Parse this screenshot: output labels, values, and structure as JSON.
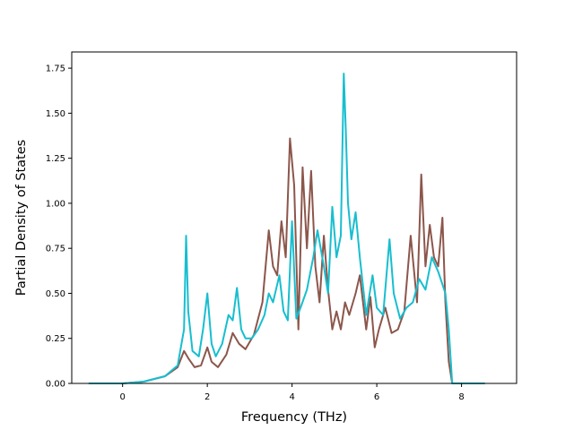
{
  "chart_data": {
    "type": "line",
    "title": "",
    "xlabel": "Frequency (THz)",
    "ylabel": "Partial Density of States",
    "xlim": [
      -1.2,
      9.3
    ],
    "ylim": [
      0.0,
      1.84
    ],
    "x_ticks": [
      0,
      2,
      4,
      6,
      8
    ],
    "x_tick_labels": [
      "0",
      "2",
      "4",
      "6",
      "8"
    ],
    "y_ticks": [
      0.0,
      0.25,
      0.5,
      0.75,
      1.0,
      1.25,
      1.5,
      1.75
    ],
    "y_tick_labels": [
      "0.00",
      "0.25",
      "0.50",
      "0.75",
      "1.00",
      "1.25",
      "1.50",
      "1.75"
    ],
    "grid": false,
    "legend": "none",
    "series": [
      {
        "color": "#8c564b",
        "x": [
          -0.8,
          0.0,
          0.5,
          1.0,
          1.3,
          1.45,
          1.55,
          1.7,
          1.85,
          2.0,
          2.1,
          2.25,
          2.45,
          2.6,
          2.75,
          2.9,
          3.1,
          3.3,
          3.45,
          3.55,
          3.65,
          3.75,
          3.85,
          3.95,
          4.05,
          4.15,
          4.25,
          4.35,
          4.45,
          4.55,
          4.65,
          4.75,
          4.85,
          4.95,
          5.05,
          5.15,
          5.25,
          5.35,
          5.5,
          5.6,
          5.75,
          5.85,
          5.95,
          6.05,
          6.2,
          6.35,
          6.5,
          6.65,
          6.8,
          6.95,
          7.05,
          7.15,
          7.25,
          7.35,
          7.45,
          7.55,
          7.62,
          7.7,
          7.78,
          7.85,
          8.0,
          8.55
        ],
        "y": [
          0.0,
          0.0,
          0.01,
          0.04,
          0.09,
          0.18,
          0.14,
          0.09,
          0.1,
          0.2,
          0.12,
          0.09,
          0.16,
          0.28,
          0.22,
          0.19,
          0.27,
          0.45,
          0.85,
          0.65,
          0.6,
          0.9,
          0.7,
          1.36,
          1.1,
          0.3,
          1.2,
          0.75,
          1.18,
          0.65,
          0.45,
          0.82,
          0.52,
          0.3,
          0.4,
          0.3,
          0.45,
          0.38,
          0.5,
          0.6,
          0.3,
          0.48,
          0.2,
          0.3,
          0.42,
          0.28,
          0.3,
          0.4,
          0.82,
          0.45,
          1.16,
          0.65,
          0.88,
          0.7,
          0.65,
          0.92,
          0.45,
          0.12,
          0.0,
          0.0,
          0.0,
          0.0
        ]
      },
      {
        "color": "#17becf",
        "x": [
          -0.8,
          0.0,
          0.5,
          1.0,
          1.3,
          1.45,
          1.5,
          1.55,
          1.65,
          1.8,
          1.9,
          2.0,
          2.1,
          2.2,
          2.35,
          2.5,
          2.6,
          2.7,
          2.8,
          2.9,
          3.05,
          3.2,
          3.35,
          3.45,
          3.55,
          3.7,
          3.8,
          3.9,
          4.0,
          4.1,
          4.2,
          4.35,
          4.5,
          4.6,
          4.75,
          4.85,
          4.95,
          5.05,
          5.15,
          5.22,
          5.27,
          5.32,
          5.4,
          5.5,
          5.6,
          5.75,
          5.9,
          6.0,
          6.15,
          6.3,
          6.4,
          6.55,
          6.7,
          6.85,
          7.0,
          7.15,
          7.3,
          7.45,
          7.55,
          7.62,
          7.7,
          7.78,
          7.85,
          8.0,
          8.55
        ],
        "y": [
          0.0,
          0.0,
          0.01,
          0.04,
          0.1,
          0.3,
          0.82,
          0.4,
          0.18,
          0.15,
          0.3,
          0.5,
          0.22,
          0.15,
          0.22,
          0.38,
          0.35,
          0.53,
          0.3,
          0.25,
          0.25,
          0.3,
          0.38,
          0.5,
          0.45,
          0.6,
          0.4,
          0.35,
          0.9,
          0.36,
          0.42,
          0.52,
          0.7,
          0.85,
          0.65,
          0.5,
          0.98,
          0.7,
          0.82,
          1.72,
          1.4,
          1.0,
          0.8,
          0.95,
          0.7,
          0.38,
          0.6,
          0.42,
          0.38,
          0.8,
          0.5,
          0.36,
          0.42,
          0.45,
          0.58,
          0.52,
          0.7,
          0.62,
          0.55,
          0.5,
          0.3,
          0.0,
          0.0,
          0.0,
          0.0
        ]
      }
    ]
  }
}
